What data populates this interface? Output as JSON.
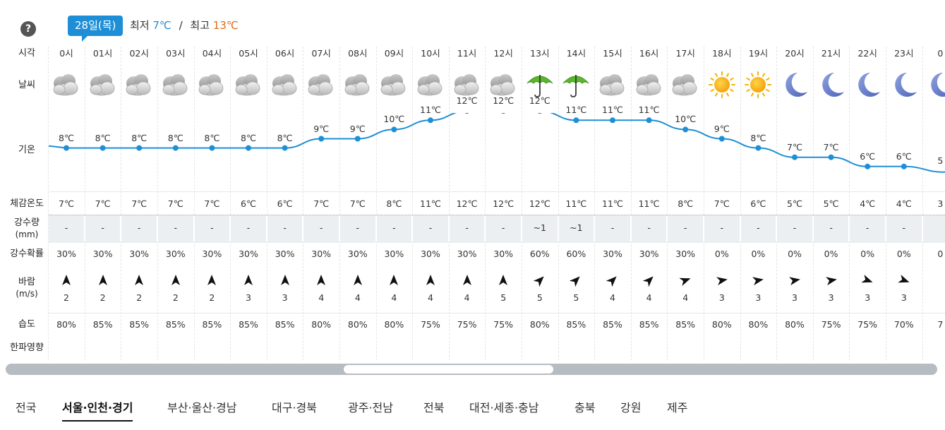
{
  "header": {
    "help_label": "?",
    "date": "28일(목)",
    "min_label": "최저",
    "min_value": "7℃",
    "separator": "/",
    "max_label": "최고",
    "max_value": "13℃"
  },
  "row_labels": {
    "time": "시각",
    "weather": "날씨",
    "temperature": "기온",
    "feels_like": "체감온도",
    "rainfall": "강수량",
    "rainfall_unit": "(mm)",
    "rain_prob": "강수확률",
    "wind": "바람",
    "wind_unit": "(m/s)",
    "humidity": "습도",
    "cold_effect": "한파영향"
  },
  "hours": [
    "0시",
    "01시",
    "02시",
    "03시",
    "04시",
    "05시",
    "06시",
    "07시",
    "08시",
    "09시",
    "10시",
    "11시",
    "12시",
    "13시",
    "14시",
    "15시",
    "16시",
    "17시",
    "18시",
    "19시",
    "20시",
    "21시",
    "22시",
    "23시"
  ],
  "partial_next": {
    "hour": "0",
    "temp": "5",
    "feels": "3",
    "prob": "0",
    "humid": "7"
  },
  "weather_icons": [
    "cloudy-icon",
    "cloudy-icon",
    "cloudy-icon",
    "cloudy-icon",
    "cloudy-icon",
    "cloudy-icon",
    "cloudy-icon",
    "cloudy-icon",
    "cloudy-icon",
    "cloudy-icon",
    "cloudy-icon",
    "cloudy-icon",
    "cloudy-icon",
    "umbrella-icon",
    "umbrella-icon",
    "cloudy-icon",
    "cloudy-icon",
    "cloudy-icon",
    "sun-icon",
    "sun-icon",
    "moon-icon",
    "moon-icon",
    "moon-icon",
    "moon-icon"
  ],
  "chart_data": {
    "type": "line",
    "x": [
      "0시",
      "01시",
      "02시",
      "03시",
      "04시",
      "05시",
      "06시",
      "07시",
      "08시",
      "09시",
      "10시",
      "11시",
      "12시",
      "13시",
      "14시",
      "15시",
      "16시",
      "17시",
      "18시",
      "19시",
      "20시",
      "21시",
      "22시",
      "23시"
    ],
    "series": [
      {
        "values": [
          8,
          8,
          8,
          8,
          8,
          8,
          8,
          9,
          9,
          10,
          11,
          12,
          12,
          12,
          11,
          11,
          11,
          10,
          9,
          8,
          7,
          7,
          6,
          6
        ]
      }
    ],
    "ylim": [
      4,
      14
    ],
    "color": "#1e8fd6"
  },
  "temp_labels": [
    "8℃",
    "8℃",
    "8℃",
    "8℃",
    "8℃",
    "8℃",
    "8℃",
    "9℃",
    "9℃",
    "10℃",
    "11℃",
    "12℃",
    "12℃",
    "12℃",
    "11℃",
    "11℃",
    "11℃",
    "10℃",
    "9℃",
    "8℃",
    "7℃",
    "7℃",
    "6℃",
    "6℃"
  ],
  "feels_like": [
    "7℃",
    "7℃",
    "7℃",
    "7℃",
    "7℃",
    "6℃",
    "6℃",
    "7℃",
    "7℃",
    "8℃",
    "11℃",
    "12℃",
    "12℃",
    "12℃",
    "11℃",
    "11℃",
    "11℃",
    "8℃",
    "7℃",
    "6℃",
    "5℃",
    "5℃",
    "4℃",
    "4℃"
  ],
  "rainfall": [
    "-",
    "-",
    "-",
    "-",
    "-",
    "-",
    "-",
    "-",
    "-",
    "-",
    "-",
    "-",
    "-",
    "~1",
    "~1",
    "-",
    "-",
    "-",
    "-",
    "-",
    "-",
    "-",
    "-",
    "-"
  ],
  "rain_prob": [
    "30%",
    "30%",
    "30%",
    "30%",
    "30%",
    "30%",
    "30%",
    "30%",
    "30%",
    "30%",
    "30%",
    "30%",
    "30%",
    "60%",
    "60%",
    "30%",
    "30%",
    "30%",
    "0%",
    "0%",
    "0%",
    "0%",
    "0%",
    "0%"
  ],
  "wind_dir_deg": [
    0,
    0,
    0,
    0,
    0,
    0,
    0,
    0,
    0,
    0,
    0,
    0,
    0,
    45,
    45,
    45,
    45,
    70,
    80,
    80,
    80,
    80,
    110,
    110
  ],
  "wind_speed": [
    "2",
    "2",
    "2",
    "2",
    "2",
    "3",
    "3",
    "4",
    "4",
    "4",
    "4",
    "4",
    "5",
    "5",
    "5",
    "4",
    "4",
    "4",
    "3",
    "3",
    "3",
    "3",
    "3",
    "3"
  ],
  "humidity": [
    "80%",
    "85%",
    "85%",
    "85%",
    "85%",
    "85%",
    "85%",
    "80%",
    "80%",
    "80%",
    "75%",
    "75%",
    "75%",
    "80%",
    "85%",
    "85%",
    "85%",
    "85%",
    "80%",
    "80%",
    "80%",
    "75%",
    "75%",
    "70%"
  ],
  "regions": [
    "전국",
    "서울·인천·경기",
    "부산·울산·경남",
    "대구·경북",
    "광주·전남",
    "전북",
    "대전·세종·충남",
    "충북",
    "강원",
    "제주"
  ],
  "active_region": 1,
  "colors": {
    "accent": "#1e8fd6",
    "high": "#e06a1a",
    "scroll_track": "#b7bcc2"
  }
}
